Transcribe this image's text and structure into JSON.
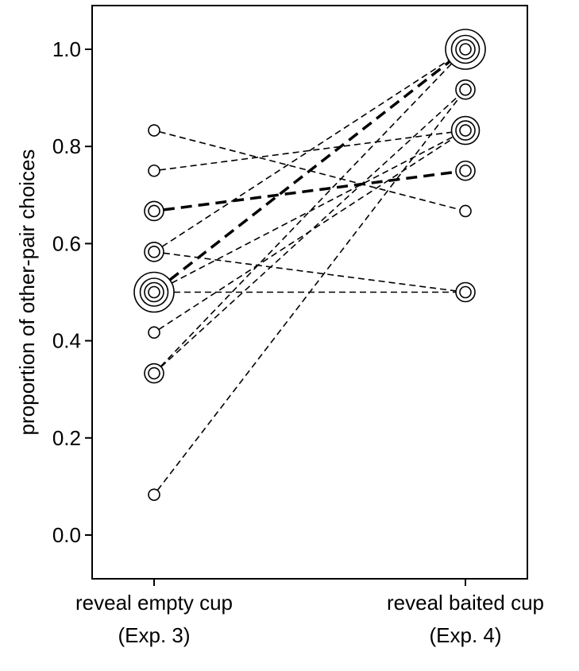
{
  "chart_data": {
    "type": "scatter",
    "ylabel": "proportion of other-pair choices",
    "ylim": [
      -0.09,
      1.09
    ],
    "yticks": [
      0.0,
      0.2,
      0.4,
      0.6,
      0.8,
      1.0
    ],
    "ytick_labels": [
      "0.0",
      "0.2",
      "0.4",
      "0.6",
      "0.8",
      "1.0"
    ],
    "categories": [
      {
        "line1": "reveal empty cup",
        "line2": "(Exp. 3)"
      },
      {
        "line1": "reveal baited cup",
        "line2": "(Exp. 4)"
      }
    ],
    "points": {
      "empty": [
        {
          "y": 0.083,
          "count": 1
        },
        {
          "y": 0.333,
          "count": 2
        },
        {
          "y": 0.417,
          "count": 1
        },
        {
          "y": 0.5,
          "count": 4
        },
        {
          "y": 0.583,
          "count": 2
        },
        {
          "y": 0.667,
          "count": 2
        },
        {
          "y": 0.75,
          "count": 1
        },
        {
          "y": 0.833,
          "count": 1
        }
      ],
      "baited": [
        {
          "y": 0.5,
          "count": 2
        },
        {
          "y": 0.667,
          "count": 1
        },
        {
          "y": 0.75,
          "count": 2
        },
        {
          "y": 0.833,
          "count": 3
        },
        {
          "y": 0.917,
          "count": 2
        },
        {
          "y": 1.0,
          "count": 4
        }
      ]
    },
    "pairs": [
      {
        "from": 0.833,
        "to": 0.667,
        "weight": 1
      },
      {
        "from": 0.75,
        "to": 0.833,
        "weight": 1
      },
      {
        "from": 0.667,
        "to": 0.75,
        "weight": 2
      },
      {
        "from": 0.583,
        "to": 1.0,
        "weight": 1
      },
      {
        "from": 0.583,
        "to": 0.5,
        "weight": 1
      },
      {
        "from": 0.5,
        "to": 1.0,
        "weight": 2
      },
      {
        "from": 0.5,
        "to": 0.833,
        "weight": 1
      },
      {
        "from": 0.5,
        "to": 0.5,
        "weight": 1
      },
      {
        "from": 0.417,
        "to": 0.833,
        "weight": 1
      },
      {
        "from": 0.333,
        "to": 0.917,
        "weight": 1
      },
      {
        "from": 0.333,
        "to": 1.0,
        "weight": 1
      },
      {
        "from": 0.083,
        "to": 0.917,
        "weight": 1
      }
    ]
  }
}
